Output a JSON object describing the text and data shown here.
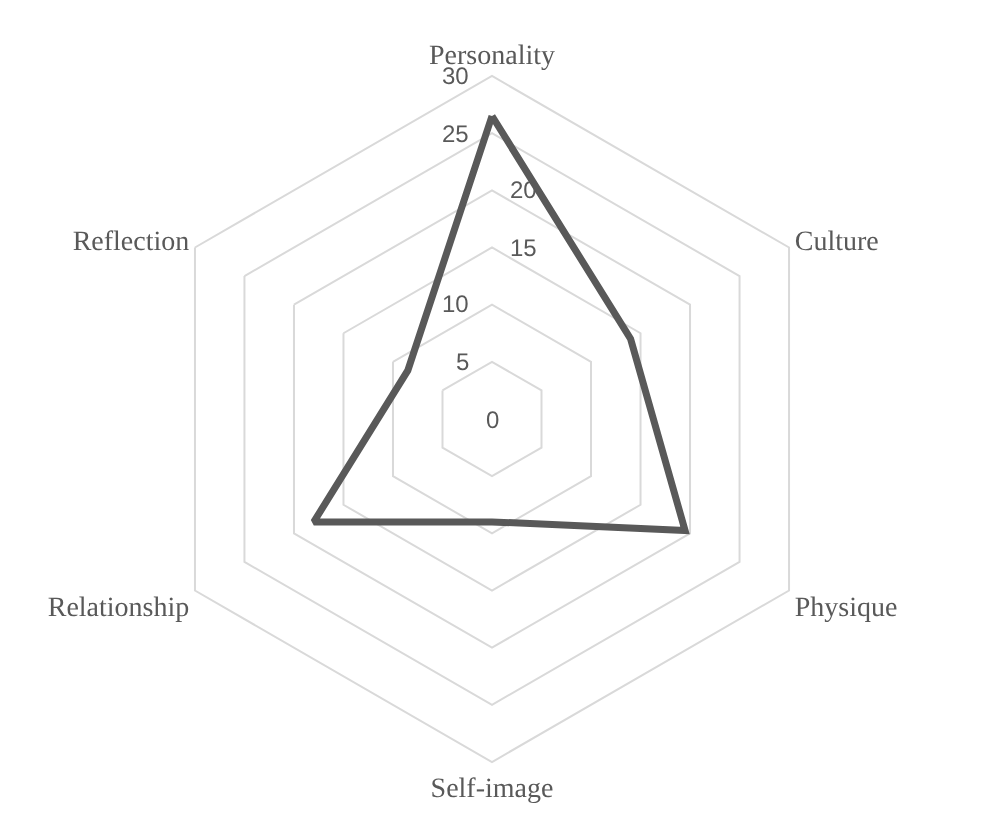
{
  "chart_data": {
    "type": "radar",
    "categories": [
      "Personality",
      "Culture",
      "Physique",
      "Self-image",
      "Relationship",
      "Reflection"
    ],
    "series": [
      {
        "color": "#595959",
        "values": [
          26.5,
          14,
          19.5,
          9,
          18,
          8.5
        ]
      }
    ],
    "ylim": [
      0,
      30
    ],
    "yticks": [
      0,
      5,
      10,
      15,
      20,
      25,
      30
    ],
    "grid": true,
    "marker": "none",
    "line_style": "solid"
  }
}
